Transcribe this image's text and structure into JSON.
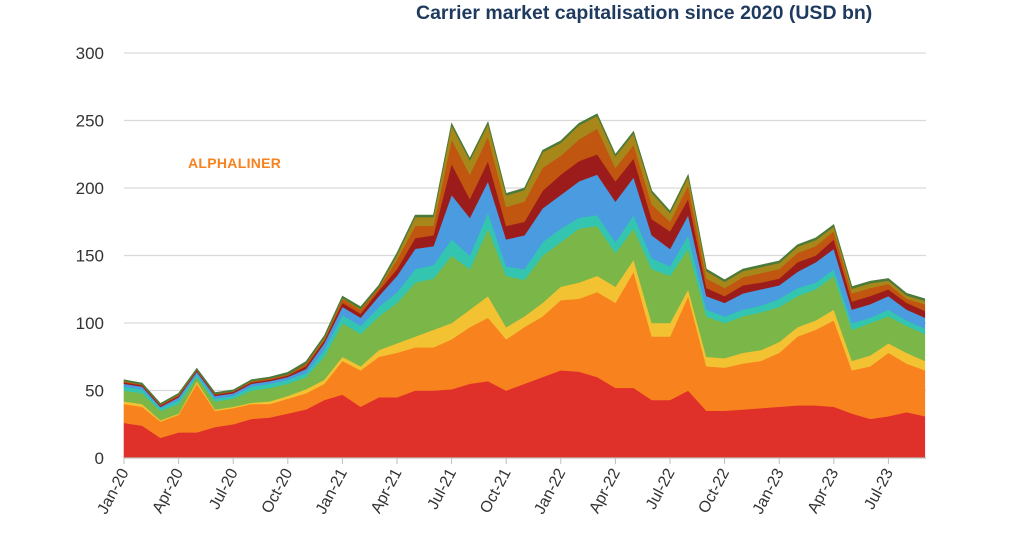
{
  "chart_data": {
    "type": "area",
    "stacked": true,
    "title": "Carrier market capitalisation since 2020 (USD bn)",
    "annotation": "ALPHALINER",
    "xlabel": "",
    "ylabel": "",
    "ylim": [
      0,
      300
    ],
    "yticks": [
      0,
      50,
      100,
      150,
      200,
      250,
      300
    ],
    "grid": true,
    "x": [
      "Jan-20",
      "Feb-20",
      "Mar-20",
      "Apr-20",
      "May-20",
      "Jun-20",
      "Jul-20",
      "Aug-20",
      "Sep-20",
      "Oct-20",
      "Nov-20",
      "Dec-20",
      "Jan-21",
      "Feb-21",
      "Mar-21",
      "Apr-21",
      "May-21",
      "Jun-21",
      "Jul-21",
      "Aug-21",
      "Sep-21",
      "Oct-21",
      "Nov-21",
      "Dec-21",
      "Jan-22",
      "Feb-22",
      "Mar-22",
      "Apr-22",
      "May-22",
      "Jun-22",
      "Jul-22",
      "Aug-22",
      "Sep-22",
      "Oct-22",
      "Nov-22",
      "Dec-22",
      "Jan-23",
      "Feb-23",
      "Mar-23",
      "Apr-23",
      "May-23",
      "Jun-23",
      "Jul-23",
      "Aug-23",
      "Sep-23"
    ],
    "xtick_labels": [
      "Jan-20",
      "Apr-20",
      "Jul-20",
      "Oct-20",
      "Jan-21",
      "Apr-21",
      "Jul-21",
      "Oct-21",
      "Jan-22",
      "Apr-22",
      "Jul-22",
      "Oct-22",
      "Jan-23",
      "Apr-23",
      "Jul-23"
    ],
    "series": [
      {
        "color": "#e0302a",
        "values": [
          26,
          24,
          15,
          19,
          19,
          23,
          25,
          29,
          30,
          33,
          36,
          43,
          47,
          38,
          45,
          45,
          50,
          50,
          51,
          55,
          57,
          50,
          55,
          60,
          65,
          64,
          60,
          52,
          52,
          43,
          43,
          50,
          35,
          35,
          36,
          37,
          38,
          39,
          39,
          38,
          33,
          29,
          31,
          34,
          31
        ]
      },
      {
        "color": "#f7821e",
        "values": [
          14,
          14,
          12,
          13,
          36,
          12,
          12,
          11,
          10,
          11,
          12,
          12,
          25,
          27,
          30,
          33,
          32,
          32,
          37,
          42,
          47,
          38,
          42,
          45,
          52,
          54,
          63,
          63,
          86,
          47,
          47,
          70,
          33,
          32,
          34,
          35,
          40,
          51,
          56,
          64,
          32,
          39,
          47,
          36,
          34
        ]
      },
      {
        "color": "#f2c233",
        "values": [
          2,
          2,
          1,
          1,
          2,
          1,
          1,
          1,
          2,
          2,
          3,
          3,
          3,
          3,
          5,
          7,
          8,
          13,
          12,
          13,
          16,
          9,
          8,
          10,
          10,
          12,
          12,
          12,
          9,
          10,
          10,
          5,
          7,
          7,
          8,
          8,
          8,
          7,
          7,
          8,
          7,
          8,
          7,
          8,
          7
        ]
      },
      {
        "color": "#7ab648",
        "values": [
          8,
          8,
          7,
          7,
          3,
          6,
          6,
          9,
          10,
          9,
          9,
          17,
          25,
          24,
          25,
          30,
          40,
          38,
          50,
          30,
          50,
          38,
          27,
          35,
          33,
          40,
          37,
          25,
          23,
          40,
          35,
          30,
          30,
          26,
          27,
          28,
          26,
          23,
          23,
          25,
          23,
          24,
          20,
          20,
          20
        ]
      },
      {
        "color": "#33c5b0",
        "values": [
          3,
          3,
          2,
          3,
          2,
          2,
          2,
          3,
          3,
          3,
          3,
          5,
          6,
          6,
          7,
          8,
          10,
          10,
          12,
          10,
          12,
          7,
          8,
          10,
          10,
          8,
          8,
          8,
          10,
          8,
          7,
          10,
          5,
          5,
          5,
          5,
          6,
          6,
          5,
          5,
          5,
          4,
          5,
          4,
          4
        ]
      },
      {
        "color": "#4a9be0",
        "values": [
          2,
          2,
          1,
          2,
          2,
          2,
          2,
          2,
          2,
          2,
          3,
          5,
          6,
          6,
          8,
          12,
          15,
          14,
          33,
          28,
          23,
          20,
          25,
          25,
          25,
          27,
          30,
          30,
          28,
          17,
          13,
          15,
          10,
          10,
          12,
          12,
          10,
          12,
          15,
          15,
          10,
          10,
          10,
          8,
          8
        ]
      },
      {
        "color": "#9c1c1c",
        "values": [
          1,
          1,
          1,
          1,
          1,
          1,
          1,
          1,
          1,
          1,
          2,
          2,
          3,
          3,
          4,
          5,
          8,
          8,
          23,
          14,
          15,
          10,
          10,
          13,
          15,
          15,
          15,
          15,
          14,
          12,
          13,
          12,
          6,
          5,
          6,
          5,
          5,
          7,
          5,
          7,
          6,
          6,
          5,
          5,
          5
        ]
      },
      {
        "color": "#c0560f",
        "values": [
          1,
          0.5,
          0.5,
          1,
          0.5,
          0.5,
          0.5,
          1,
          1,
          1,
          2,
          1,
          3,
          3,
          2,
          7,
          9,
          7,
          18,
          18,
          18,
          14,
          15,
          17,
          14,
          16,
          19,
          10,
          10,
          11,
          7,
          10,
          7,
          6,
          6,
          7,
          7,
          7,
          7,
          6,
          6,
          6,
          4,
          3,
          5
        ]
      },
      {
        "color": "#a8871a",
        "values": [
          0,
          0,
          0,
          0,
          0,
          0,
          0,
          0,
          0,
          0,
          0,
          1,
          0.5,
          0.5,
          0.5,
          3.5,
          6.5,
          6.5,
          10.5,
          10.5,
          9.5,
          8.5,
          8.5,
          11.5,
          9.5,
          10.5,
          9.5,
          8.5,
          8.5,
          8.5,
          6.5,
          6.5,
          5.5,
          4.5,
          4.5,
          4.5,
          4.5,
          4.5,
          4.5,
          3.5,
          3.5,
          3.5,
          2.5,
          2.5,
          2.5
        ]
      },
      {
        "color": "#4b7a3a",
        "values": [
          1,
          1,
          1,
          1,
          1,
          1,
          1,
          1,
          1,
          1.5,
          1.5,
          1.5,
          1.5,
          1.5,
          1.5,
          1.5,
          1.5,
          1.5,
          1.5,
          1.5,
          1.5,
          1.5,
          1.5,
          1.5,
          1.5,
          1.5,
          1.5,
          1.5,
          1.5,
          1.5,
          1.5,
          1.5,
          1.5,
          1.5,
          1.5,
          1.5,
          1.5,
          1.5,
          1.5,
          1.5,
          1.5,
          1.5,
          1.5,
          1.5,
          1.5
        ]
      }
    ]
  }
}
